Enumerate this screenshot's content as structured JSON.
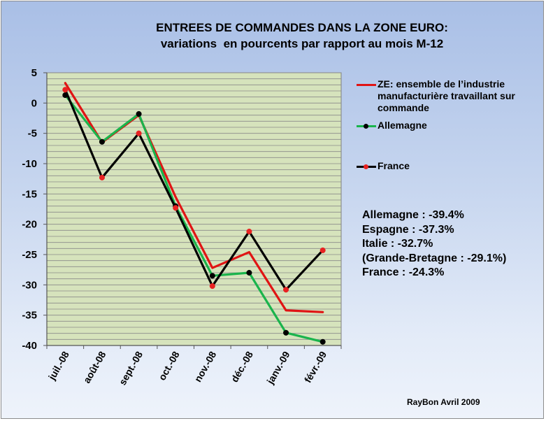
{
  "chart_data": {
    "type": "line",
    "title": "ENTREES DE COMMANDES DANS LA ZONE EURO:",
    "subtitle": "variations  en pourcents par rapport au mois M-12",
    "categories": [
      "juil.-08",
      "août-08",
      "sept.-08",
      "oct.-08",
      "nov.-08",
      "déc.-08",
      "janv.-09",
      "févr.-09"
    ],
    "ylim": [
      -40,
      5
    ],
    "yticks": [
      5,
      0,
      -5,
      -10,
      -15,
      -20,
      -25,
      -30,
      -35,
      -40
    ],
    "grid": true,
    "legend_position": "right",
    "series": [
      {
        "name": "ZE: ensemble de l’industrie manufacturière travaillant sur commande",
        "color": "#e01414",
        "marker": null,
        "values": [
          3.3,
          -6.5,
          -2.0,
          -15.5,
          -27.2,
          -24.6,
          -34.2,
          -34.5
        ]
      },
      {
        "name": "Allemagne",
        "color": "#1ab44c",
        "marker_color": "#000000",
        "values": [
          1.3,
          -6.4,
          -1.8,
          -17.0,
          -28.5,
          -28.0,
          -37.9,
          -39.4
        ]
      },
      {
        "name": "France",
        "color": "#000000",
        "marker_color": "#e82222",
        "values": [
          2.2,
          -12.3,
          -5.0,
          -17.3,
          -30.2,
          -21.2,
          -30.8,
          -24.3
        ]
      }
    ]
  },
  "stats": [
    "Allemagne : -39.4%",
    "Espagne : -37.3%",
    "Italie : -32.7%",
    "(Grande-Bretagne : -29.1%)",
    "France : -24.3%"
  ],
  "credit": "RayBon Avril 2009"
}
